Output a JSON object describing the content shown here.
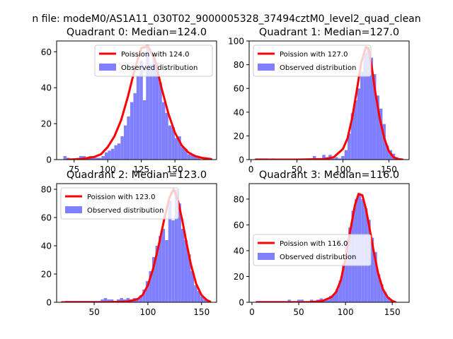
{
  "figure": {
    "suptitle": "n file: modeM0/AS1A11_030T02_9000005328_37494cztM0_level2_quad_clean",
    "colors": {
      "hist": "#8080ff",
      "poisson": "#ff0000"
    }
  },
  "chart_data": [
    {
      "type": "bar",
      "title": "Quadrant 0: Median=124.0",
      "median": 124.0,
      "xlim": [
        62,
        181
      ],
      "ylim": [
        0,
        66
      ],
      "xticks": [
        75,
        100,
        125,
        150
      ],
      "yticks": [
        0,
        20,
        40,
        60
      ],
      "legend": {
        "placement": "upper right",
        "entries": [
          "Poission with 124.0",
          "Observed distribution"
        ]
      },
      "histogram": {
        "bin_width": 2.36,
        "bins": [
          [
            67,
            2
          ],
          [
            69.4,
            1
          ],
          [
            71.7,
            0
          ],
          [
            74.1,
            0
          ],
          [
            76.5,
            1
          ],
          [
            78.8,
            2
          ],
          [
            81.2,
            2
          ],
          [
            83.6,
            1
          ],
          [
            85.9,
            2
          ],
          [
            88.3,
            1
          ],
          [
            90.7,
            1
          ],
          [
            93,
            1
          ],
          [
            95.4,
            2
          ],
          [
            97.8,
            4
          ],
          [
            100.1,
            5
          ],
          [
            102.5,
            6
          ],
          [
            104.9,
            8
          ],
          [
            107.2,
            9
          ],
          [
            109.6,
            13
          ],
          [
            112,
            19
          ],
          [
            114.3,
            24
          ],
          [
            116.7,
            32
          ],
          [
            119.1,
            37
          ],
          [
            121.4,
            47
          ],
          [
            123.8,
            55
          ],
          [
            126.2,
            33
          ],
          [
            128.5,
            64
          ],
          [
            130.9,
            53
          ],
          [
            133.3,
            58
          ],
          [
            135.6,
            54
          ],
          [
            138,
            43
          ],
          [
            140.4,
            32
          ],
          [
            142.7,
            26
          ],
          [
            145.1,
            19
          ],
          [
            147.5,
            18
          ],
          [
            149.8,
            12
          ],
          [
            152.2,
            13
          ],
          [
            154.6,
            7
          ],
          [
            156.9,
            6
          ],
          [
            159.3,
            3
          ],
          [
            161.7,
            3
          ],
          [
            164,
            2
          ],
          [
            166.4,
            1
          ],
          [
            168.8,
            0
          ],
          [
            171.1,
            1
          ]
        ]
      },
      "poisson_curve": {
        "x": [
          70,
          80,
          90,
          95,
          100,
          105,
          110,
          115,
          120,
          125,
          130,
          135,
          140,
          145,
          150,
          155,
          160,
          165,
          170,
          177
        ],
        "y": [
          0,
          0.3,
          1.5,
          3,
          7,
          13,
          22,
          35,
          50,
          62,
          63,
          56,
          40,
          26,
          15,
          8,
          4,
          2,
          1,
          0.3
        ]
      }
    },
    {
      "type": "bar",
      "title": "Quadrant 1: Median=127.0",
      "median": 127.0,
      "xlim": [
        -2,
        172
      ],
      "ylim": [
        0,
        100
      ],
      "xticks": [
        0,
        50,
        100,
        150
      ],
      "yticks": [
        0,
        20,
        40,
        60,
        80,
        100
      ],
      "legend": {
        "placement": "upper left",
        "entries": [
          "Poission with 127.0",
          "Observed distribution"
        ]
      },
      "histogram": {
        "bin_width": 3.46,
        "bins": [
          [
            5,
            1
          ],
          [
            8.5,
            1
          ],
          [
            12,
            1
          ],
          [
            15.4,
            1
          ],
          [
            18.9,
            0
          ],
          [
            22.3,
            1
          ],
          [
            25.8,
            0
          ],
          [
            29.2,
            0
          ],
          [
            32.7,
            0
          ],
          [
            36.1,
            0
          ],
          [
            39.6,
            0
          ],
          [
            43,
            0
          ],
          [
            46.5,
            0
          ],
          [
            49.9,
            0
          ],
          [
            53.4,
            0
          ],
          [
            56.8,
            0
          ],
          [
            60.3,
            0
          ],
          [
            63.7,
            1
          ],
          [
            67.2,
            3
          ],
          [
            70.6,
            1
          ],
          [
            74.1,
            0
          ],
          [
            77.5,
            4
          ],
          [
            81,
            2
          ],
          [
            84.4,
            4
          ],
          [
            87.9,
            1
          ],
          [
            91.3,
            2
          ],
          [
            94.8,
            1
          ],
          [
            98.2,
            3
          ],
          [
            101.7,
            8
          ],
          [
            105.1,
            22
          ],
          [
            108.6,
            39
          ],
          [
            112,
            50
          ],
          [
            115.5,
            60
          ],
          [
            118.9,
            74
          ],
          [
            122.4,
            90
          ],
          [
            125.8,
            95
          ],
          [
            129.3,
            86
          ],
          [
            132.7,
            72
          ],
          [
            136.2,
            54
          ],
          [
            139.6,
            43
          ],
          [
            143.1,
            30
          ],
          [
            146.5,
            12
          ],
          [
            150,
            8
          ],
          [
            153.4,
            5
          ],
          [
            156.9,
            2
          ],
          [
            160.3,
            1
          ]
        ]
      },
      "poisson_curve": {
        "x": [
          5,
          50,
          80,
          90,
          100,
          105,
          110,
          115,
          120,
          125,
          128,
          132,
          135,
          140,
          145,
          150,
          155,
          160,
          165
        ],
        "y": [
          0,
          0,
          0.5,
          2,
          9,
          18,
          35,
          58,
          82,
          95,
          93,
          75,
          58,
          35,
          18,
          7,
          2,
          0.5,
          0
        ]
      }
    },
    {
      "type": "bar",
      "title": "Quadrant 2: Median=123.0",
      "median": 123.0,
      "xlim": [
        15,
        164
      ],
      "ylim": [
        0,
        84
      ],
      "xticks": [
        50,
        100,
        150
      ],
      "yticks": [
        0,
        20,
        40,
        60,
        80
      ],
      "legend": {
        "placement": "upper left",
        "entries": [
          "Poission with 123.0",
          "Observed distribution"
        ]
      },
      "histogram": {
        "bin_width": 2.96,
        "bins": [
          [
            23,
            1
          ],
          [
            26,
            1
          ],
          [
            29,
            1
          ],
          [
            32,
            1
          ],
          [
            35,
            1
          ],
          [
            38,
            1
          ],
          [
            41,
            1
          ],
          [
            44,
            1
          ],
          [
            47,
            1
          ],
          [
            50,
            1
          ],
          [
            53,
            1
          ],
          [
            56,
            2
          ],
          [
            59,
            3
          ],
          [
            62,
            2
          ],
          [
            65,
            2
          ],
          [
            68,
            1
          ],
          [
            71,
            2
          ],
          [
            74,
            3
          ],
          [
            77,
            2
          ],
          [
            80,
            3
          ],
          [
            83,
            2
          ],
          [
            86,
            3
          ],
          [
            89,
            3
          ],
          [
            92,
            5
          ],
          [
            95,
            9
          ],
          [
            98,
            15
          ],
          [
            101,
            22
          ],
          [
            104,
            32
          ],
          [
            107,
            40
          ],
          [
            110,
            47
          ],
          [
            113,
            52
          ],
          [
            116,
            44
          ],
          [
            119,
            72
          ],
          [
            122,
            58
          ],
          [
            125,
            80
          ],
          [
            128,
            70
          ],
          [
            131,
            52
          ],
          [
            134,
            44
          ],
          [
            137,
            34
          ],
          [
            140,
            22
          ],
          [
            143,
            12
          ],
          [
            146,
            8
          ],
          [
            149,
            4
          ],
          [
            152,
            2
          ],
          [
            155,
            1
          ]
        ]
      },
      "poisson_curve": {
        "x": [
          20,
          60,
          80,
          90,
          95,
          100,
          105,
          110,
          115,
          120,
          124,
          128,
          132,
          136,
          140,
          145,
          150,
          155,
          158
        ],
        "y": [
          0,
          0,
          0.5,
          2,
          5,
          12,
          24,
          40,
          58,
          74,
          80,
          72,
          58,
          42,
          27,
          13,
          5,
          1.5,
          0.5
        ]
      }
    },
    {
      "type": "bar",
      "title": "Quadrant 3: Median=116.0",
      "median": 116.0,
      "xlim": [
        -3,
        168
      ],
      "ylim": [
        0,
        92
      ],
      "xticks": [
        0,
        50,
        100,
        150
      ],
      "yticks": [
        0,
        20,
        40,
        60,
        80
      ],
      "legend": {
        "placement": "center left",
        "entries": [
          "Poission with 116.0",
          "Observed distribution"
        ]
      },
      "histogram": {
        "bin_width": 3.42,
        "bins": [
          [
            4,
            1
          ],
          [
            7.4,
            1
          ],
          [
            10.8,
            1
          ],
          [
            14.2,
            1
          ],
          [
            17.7,
            1
          ],
          [
            21.1,
            1
          ],
          [
            24.5,
            1
          ],
          [
            27.9,
            1
          ],
          [
            31.3,
            1
          ],
          [
            34.7,
            1
          ],
          [
            38.1,
            2
          ],
          [
            41.6,
            1
          ],
          [
            45,
            1
          ],
          [
            48.4,
            2
          ],
          [
            51.8,
            2
          ],
          [
            55.2,
            1
          ],
          [
            58.6,
            1
          ],
          [
            62,
            2
          ],
          [
            65.4,
            1
          ],
          [
            68.9,
            2
          ],
          [
            72.3,
            3
          ],
          [
            75.7,
            2
          ],
          [
            79.1,
            2
          ],
          [
            82.5,
            5
          ],
          [
            85.9,
            6
          ],
          [
            89.3,
            10
          ],
          [
            92.8,
            17
          ],
          [
            96.2,
            30
          ],
          [
            99.6,
            47
          ],
          [
            103,
            58
          ],
          [
            106.4,
            71
          ],
          [
            109.8,
            80
          ],
          [
            113.2,
            84
          ],
          [
            116.7,
            80
          ],
          [
            120.1,
            73
          ],
          [
            123.5,
            64
          ],
          [
            126.9,
            50
          ],
          [
            130.3,
            39
          ],
          [
            133.7,
            22
          ],
          [
            137.1,
            14
          ],
          [
            140.6,
            8
          ],
          [
            144,
            4
          ],
          [
            147.4,
            2
          ],
          [
            150.8,
            1
          ]
        ]
      },
      "poisson_curve": {
        "x": [
          5,
          60,
          75,
          85,
          90,
          95,
          100,
          105,
          110,
          114,
          118,
          122,
          126,
          130,
          135,
          140,
          145,
          150,
          153
        ],
        "y": [
          0,
          0,
          1,
          4,
          8,
          17,
          34,
          55,
          75,
          84,
          83,
          72,
          56,
          40,
          22,
          10,
          4,
          1,
          0.3
        ]
      }
    }
  ]
}
